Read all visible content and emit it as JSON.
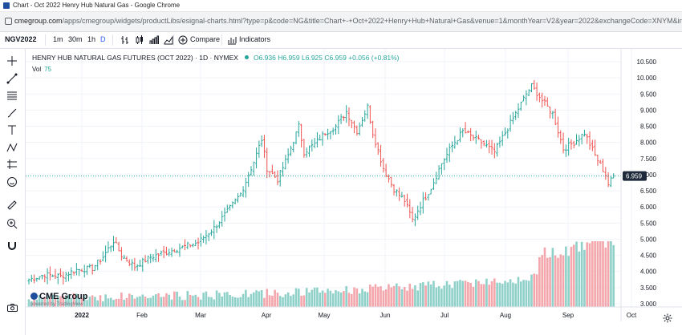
{
  "browser": {
    "window_title": "Chart - Oct 2022 Henry Hub Natural Gas - Google Chrome",
    "url_host": "cmegroup.com",
    "url_path": "/apps/cmegroup/widgets/productLibs/esignal-charts.html?type=p&code=NG&title=Chart+-+Oct+2022+Henry+Hub+Natural+Gas&venue=1&monthYear=V2&year=2022&exchangeCode=XNYM&interv..."
  },
  "toolbar": {
    "symbol": "NGV2022",
    "intervals": [
      "1m",
      "30m",
      "1h",
      "D"
    ],
    "active_interval": "D",
    "compare_label": "Compare",
    "indicators_label": "Indicators"
  },
  "legend": {
    "name": "HENRY HUB NATURAL GAS FUTURES (OCT 2022) · 1D · NYMEX",
    "open": "O6.936",
    "high": "H6.959",
    "low": "L6.925",
    "close": "C6.959",
    "change": "+0.056 (+0.81%)",
    "vol_label": "Vol",
    "vol_value": "75"
  },
  "last_price": "6.959",
  "branding": {
    "name": "CME Group",
    "powered": "powered by TradingView"
  },
  "colors": {
    "up": "#26a69a",
    "down": "#ef5350",
    "vol_up": "#8fd1c9",
    "vol_down": "#f3a6ab",
    "badge": "#1e2a3a"
  },
  "chart_data": {
    "type": "bar",
    "x_ticks": [
      "2022",
      "Feb",
      "Mar",
      "Apr",
      "May",
      "Jun",
      "Jul",
      "Aug",
      "Sep",
      "Oct"
    ],
    "y_ticks": [
      "10.500",
      "10.000",
      "9.500",
      "9.000",
      "8.500",
      "8.000",
      "7.500",
      "7.000",
      "6.500",
      "6.000",
      "5.500",
      "5.000",
      "4.500",
      "4.000",
      "3.500",
      "3.000"
    ],
    "y_range": [
      2.9,
      10.6
    ],
    "series": [
      {
        "anchors": [
          [
            0,
            3.75
          ],
          [
            6,
            3.9
          ],
          [
            12,
            3.85
          ],
          [
            18,
            4.05
          ],
          [
            24,
            4.1
          ],
          [
            28,
            4.45
          ],
          [
            32,
            4.95
          ],
          [
            35,
            4.5
          ],
          [
            40,
            4.15
          ],
          [
            46,
            4.45
          ],
          [
            52,
            4.6
          ],
          [
            58,
            4.75
          ],
          [
            64,
            4.9
          ],
          [
            70,
            5.35
          ],
          [
            74,
            5.75
          ],
          [
            80,
            6.4
          ],
          [
            85,
            7.4
          ],
          [
            88,
            8.1
          ],
          [
            90,
            7.2
          ],
          [
            94,
            6.85
          ],
          [
            98,
            7.6
          ],
          [
            102,
            8.5
          ],
          [
            104,
            7.7
          ],
          [
            108,
            7.95
          ],
          [
            112,
            8.3
          ],
          [
            116,
            8.5
          ],
          [
            120,
            8.95
          ],
          [
            124,
            8.35
          ],
          [
            128,
            9.1
          ],
          [
            130,
            8.3
          ],
          [
            134,
            7.2
          ],
          [
            138,
            6.55
          ],
          [
            142,
            6.2
          ],
          [
            145,
            5.6
          ],
          [
            148,
            6.05
          ],
          [
            152,
            6.6
          ],
          [
            156,
            7.35
          ],
          [
            160,
            7.9
          ],
          [
            164,
            8.35
          ],
          [
            168,
            8.15
          ],
          [
            172,
            7.95
          ],
          [
            176,
            7.7
          ],
          [
            180,
            8.3
          ],
          [
            184,
            8.9
          ],
          [
            188,
            9.5
          ],
          [
            190,
            9.75
          ],
          [
            194,
            9.3
          ],
          [
            198,
            8.9
          ],
          [
            202,
            7.8
          ],
          [
            206,
            8.0
          ],
          [
            210,
            8.3
          ],
          [
            214,
            7.6
          ],
          [
            218,
            7.0
          ],
          [
            219,
            6.7
          ],
          [
            221,
            6.959
          ]
        ],
        "last": 6.959
      }
    ],
    "volume_range": [
      0,
      50000
    ]
  }
}
